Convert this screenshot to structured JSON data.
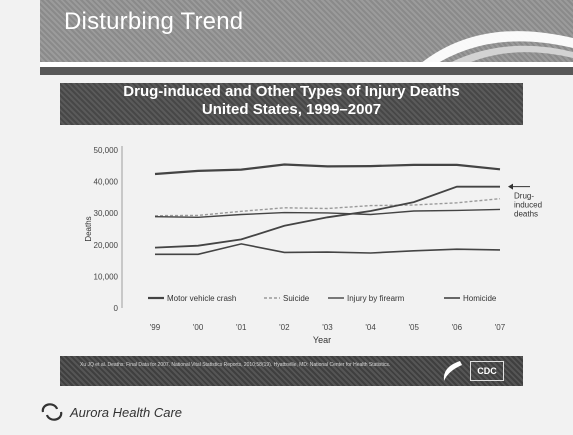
{
  "slide": {
    "title": "Disturbing Trend",
    "footer_note": "Xu JQ et al. Deaths: Final Data for 2007. National Vital Statistics Reports, 2010;58(19). Hyattsville, MD: National Center for Health Statistics.",
    "cdc_logo_text": "CDC",
    "brand_name": "Aurora Health Care",
    "colors": {
      "title_band": "#8f8f8f",
      "subtitle_band": "#4e4e4e",
      "series_line": "#444444"
    },
    "icons": [
      "cdc-swoosh-icon",
      "aurora-logo-icon"
    ]
  },
  "chart_data": {
    "type": "line",
    "title": "Drug-induced and Other Types of Injury Deaths",
    "subtitle": "United States, 1999–2007",
    "xlabel": "Year",
    "ylabel": "Deaths",
    "categories": [
      "'99",
      "'00",
      "'01",
      "'02",
      "'03",
      "'04",
      "'05",
      "'06",
      "'07"
    ],
    "ylim": [
      0,
      50000
    ],
    "yticks": [
      0,
      10000,
      20000,
      30000,
      40000,
      50000
    ],
    "ytick_labels": [
      "0",
      "10,000",
      "20,000",
      "30,000",
      "40,000",
      "50,000"
    ],
    "series": [
      {
        "name": "Motor vehicle crash",
        "values": [
          42400,
          43400,
          43800,
          45400,
          44800,
          44900,
          45300,
          45300,
          43900
        ]
      },
      {
        "name": "Suicide",
        "values": [
          29200,
          29300,
          30600,
          31700,
          31500,
          32400,
          32600,
          33300,
          34600
        ]
      },
      {
        "name": "Injury by firearm",
        "values": [
          28900,
          28700,
          29600,
          30200,
          30100,
          29600,
          30700,
          30900,
          31200
        ]
      },
      {
        "name": "Homicide",
        "values": [
          17000,
          17000,
          20300,
          17600,
          17700,
          17400,
          18100,
          18600,
          18400
        ]
      },
      {
        "name": "Drug-induced deaths",
        "values": [
          19100,
          19700,
          21700,
          26000,
          28700,
          30700,
          33500,
          38400,
          38400
        ]
      }
    ],
    "annotation": {
      "lines": [
        "Drug-",
        "induced",
        "deaths"
      ]
    },
    "legend": {
      "placement": "bottom-inside",
      "entries": [
        "Motor vehicle crash",
        "Suicide",
        "Injury by firearm",
        "Homicide"
      ]
    },
    "grid": false
  }
}
